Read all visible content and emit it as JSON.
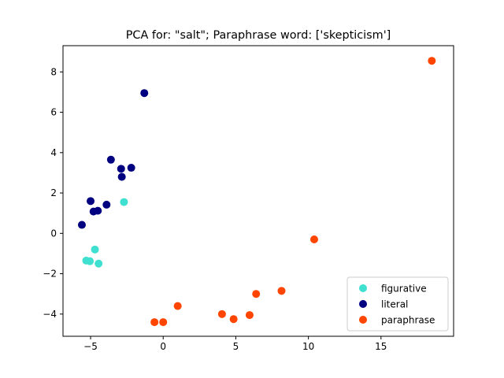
{
  "chart_data": {
    "type": "scatter",
    "title": "PCA for: \"salt\"; Paraphrase word: ['skepticism']",
    "xlabel": "",
    "ylabel": "",
    "xlim": [
      -6.9,
      20.0
    ],
    "ylim": [
      -5.1,
      9.3
    ],
    "xticks": [
      -5,
      0,
      5,
      10,
      15
    ],
    "yticks": [
      -4,
      -2,
      0,
      2,
      4,
      6,
      8
    ],
    "xtick_labels": [
      "−5",
      "0",
      "5",
      "10",
      "15"
    ],
    "ytick_labels": [
      "−4",
      "−2",
      "0",
      "2",
      "4",
      "6",
      "8"
    ],
    "grid": false,
    "legend_position": "lower-right",
    "series": [
      {
        "name": "figurative",
        "color": "#40e0d0",
        "points": [
          {
            "x": -2.7,
            "y": 1.55
          },
          {
            "x": -4.7,
            "y": -0.8
          },
          {
            "x": -5.3,
            "y": -1.35
          },
          {
            "x": -5.05,
            "y": -1.38
          },
          {
            "x": -4.45,
            "y": -1.5
          }
        ]
      },
      {
        "name": "literal",
        "color": "#000080",
        "points": [
          {
            "x": -1.3,
            "y": 6.95
          },
          {
            "x": -3.6,
            "y": 3.65
          },
          {
            "x": -2.9,
            "y": 3.2
          },
          {
            "x": -2.2,
            "y": 3.25
          },
          {
            "x": -2.85,
            "y": 2.8
          },
          {
            "x": -5.0,
            "y": 1.6
          },
          {
            "x": -4.8,
            "y": 1.08
          },
          {
            "x": -4.5,
            "y": 1.12
          },
          {
            "x": -3.9,
            "y": 1.42
          },
          {
            "x": -5.6,
            "y": 0.42
          }
        ]
      },
      {
        "name": "paraphrase",
        "color": "#ff4500",
        "points": [
          {
            "x": 18.5,
            "y": 8.55
          },
          {
            "x": 10.4,
            "y": -0.3
          },
          {
            "x": 8.15,
            "y": -2.85
          },
          {
            "x": 6.4,
            "y": -3.0
          },
          {
            "x": 5.95,
            "y": -4.05
          },
          {
            "x": 4.85,
            "y": -4.25
          },
          {
            "x": 4.05,
            "y": -4.0
          },
          {
            "x": 1.0,
            "y": -3.6
          },
          {
            "x": 0.0,
            "y": -4.4
          },
          {
            "x": -0.6,
            "y": -4.4
          }
        ]
      }
    ]
  }
}
